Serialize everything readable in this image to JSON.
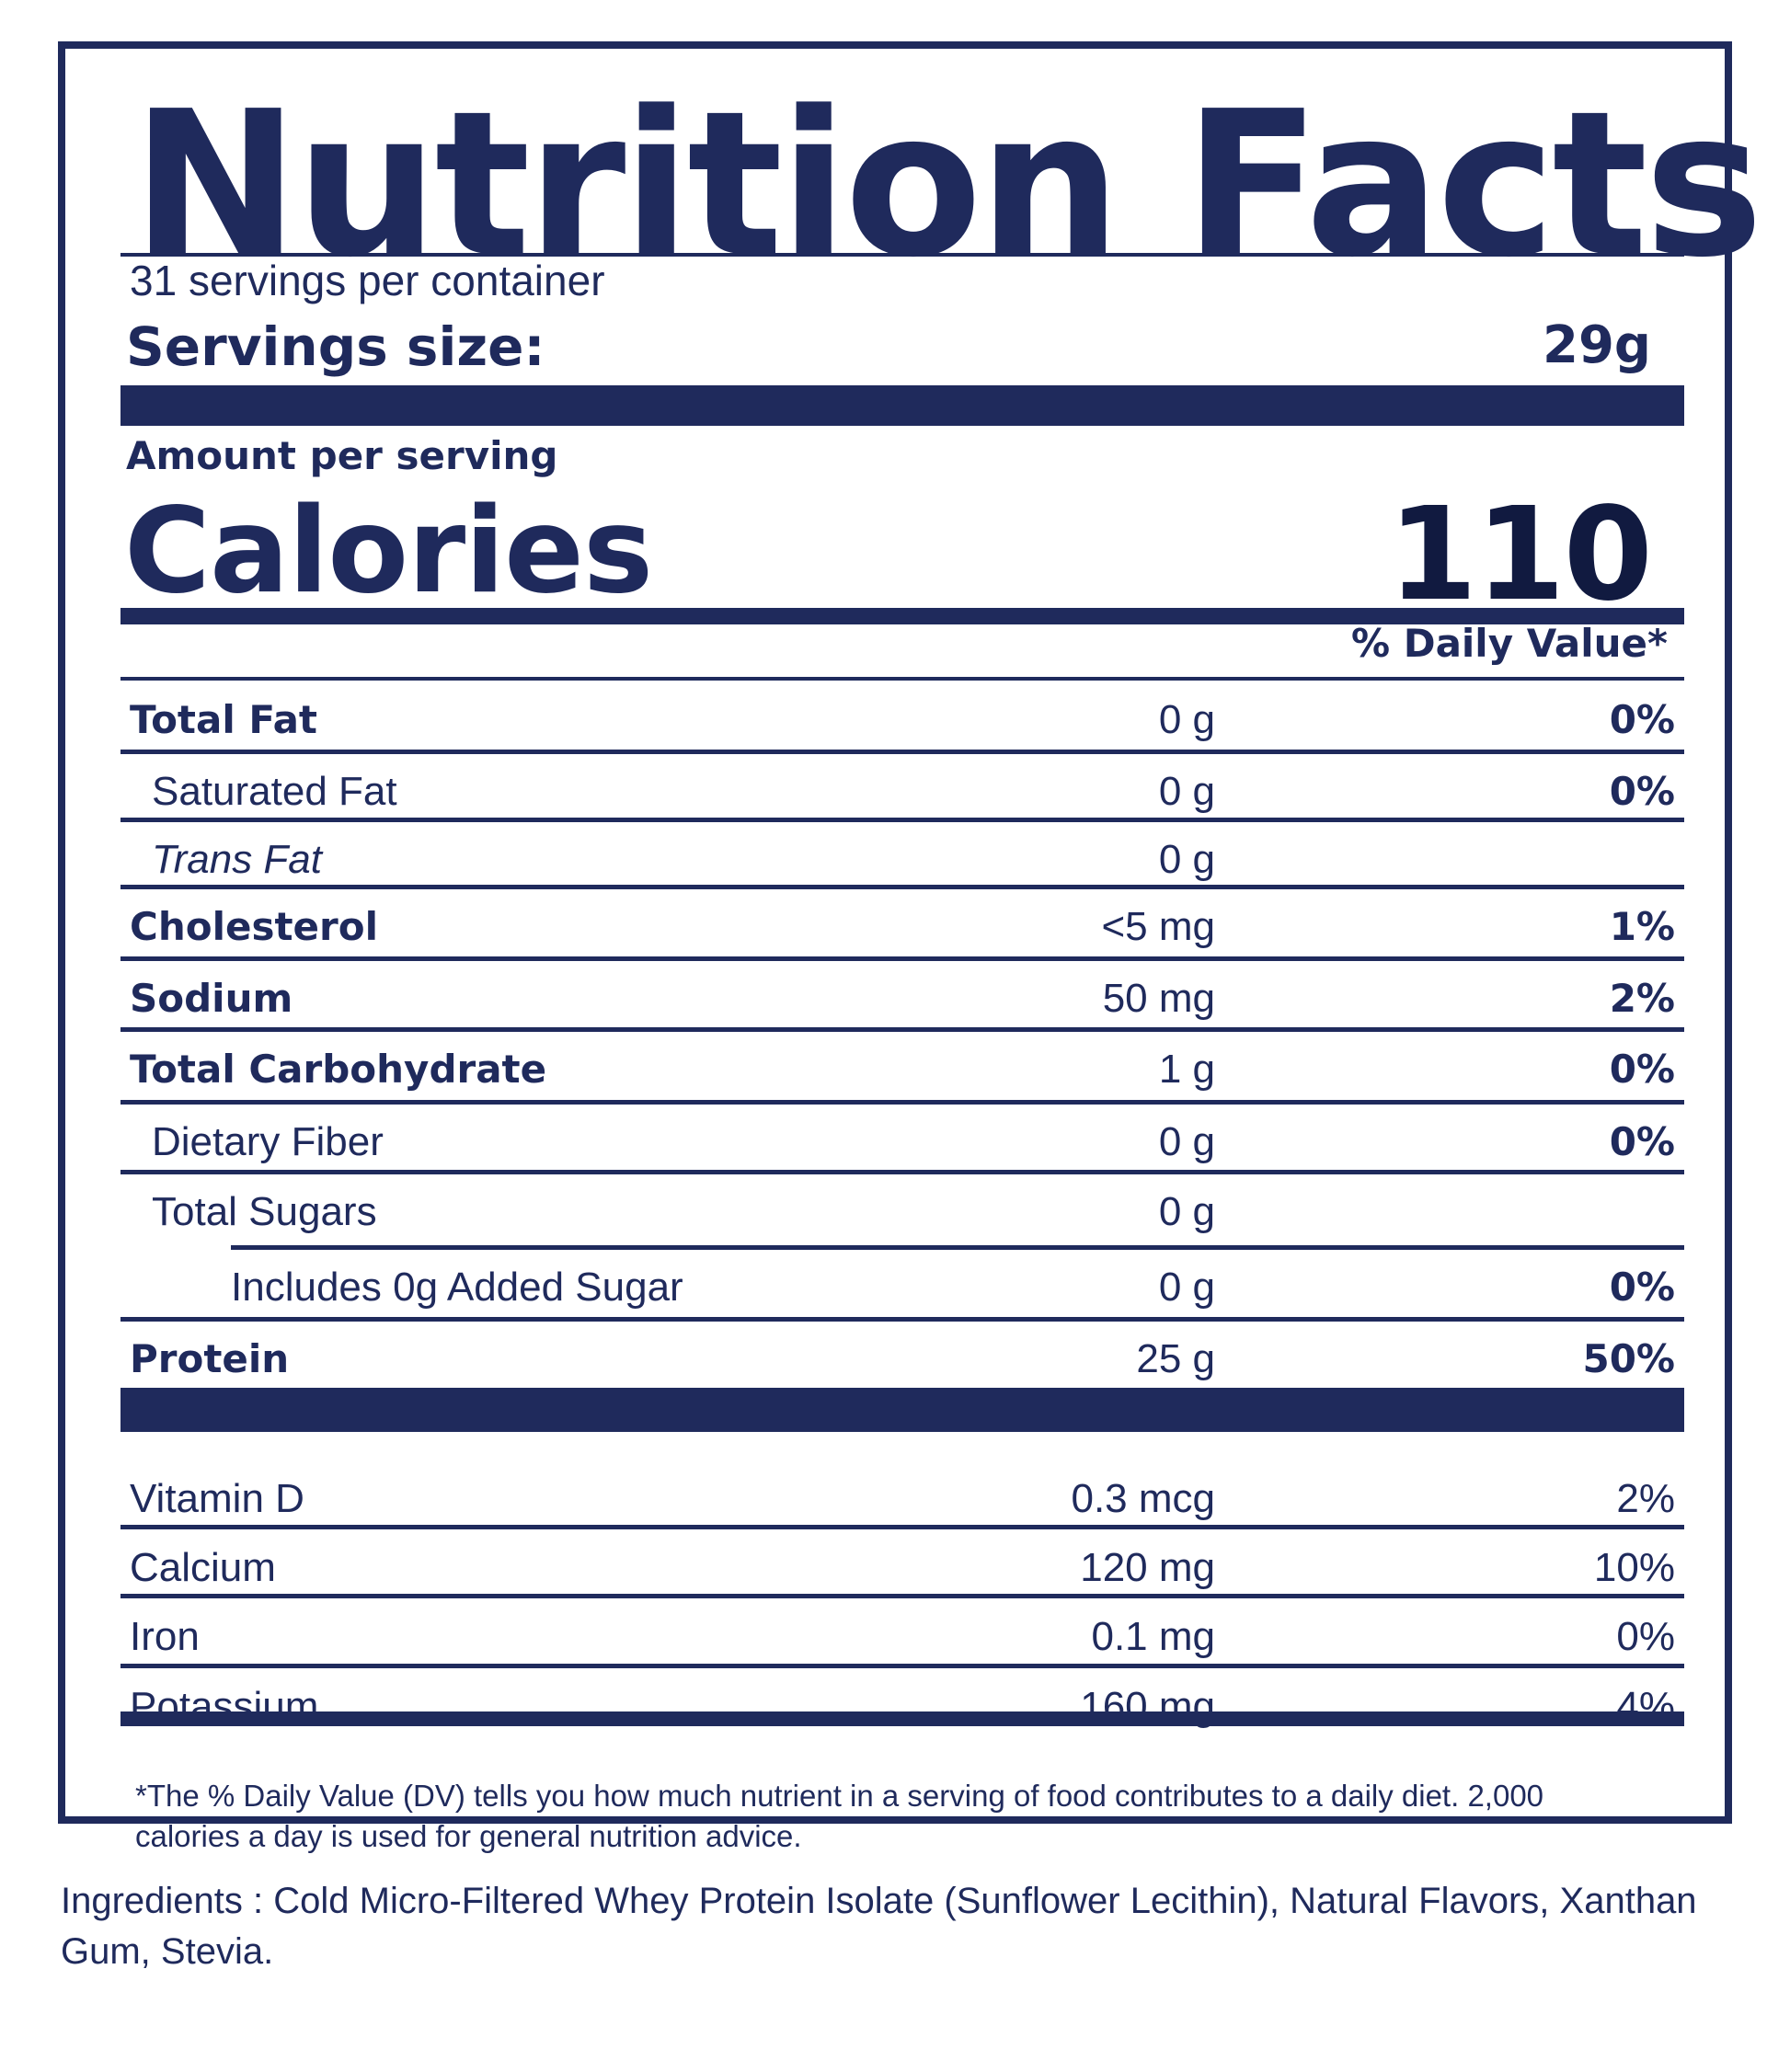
{
  "label": {
    "title": "Nutrition Facts",
    "servings_per_container": "31 servings per container",
    "serving_size_label": "Servings size:",
    "serving_size_value": "29g",
    "amount_per_serving": "Amount per serving",
    "calories_label": "Calories",
    "calories_value": "110",
    "daily_value_header": "% Daily Value*",
    "nutrients": [
      {
        "name": "Total Fat",
        "amount": "0 g",
        "dv": "0%"
      },
      {
        "name": "Saturated Fat",
        "amount": "0 g",
        "dv": "0%"
      },
      {
        "name": "Trans Fat",
        "amount": "0 g",
        "dv": ""
      },
      {
        "name": "Cholesterol",
        "amount": "<5 mg",
        "dv": "1%"
      },
      {
        "name": "Sodium",
        "amount": "50 mg",
        "dv": "2%"
      },
      {
        "name": "Total Carbohydrate",
        "amount": "1 g",
        "dv": "0%"
      },
      {
        "name": "Dietary Fiber",
        "amount": "0 g",
        "dv": "0%"
      },
      {
        "name": "Total Sugars",
        "amount": "0 g",
        "dv": ""
      },
      {
        "name": "Includes 0g Added Sugar",
        "amount": "0 g",
        "dv": "0%"
      },
      {
        "name": "Protein",
        "amount": "25 g",
        "dv": "50%"
      }
    ],
    "vitamins": [
      {
        "name": "Vitamin D",
        "amount": "0.3 mcg",
        "dv": "2%"
      },
      {
        "name": "Calcium",
        "amount": "120 mg",
        "dv": "10%"
      },
      {
        "name": "Iron",
        "amount": "0.1 mg",
        "dv": "0%"
      },
      {
        "name": "Potassium",
        "amount": "160 mg",
        "dv": "4%"
      }
    ],
    "footnote": "*The % Daily Value (DV) tells you how much nutrient in a serving of food contributes to a daily diet. 2,000 calories a day is used for general nutrition advice."
  },
  "ingredients": "Ingredients :  Cold Micro-Filtered Whey Protein Isolate (Sunflower Lecithin), Natural Flavors, Xanthan Gum, Stevia.",
  "colors": {
    "ink": "#1f2a5c",
    "background": "#ffffff"
  }
}
